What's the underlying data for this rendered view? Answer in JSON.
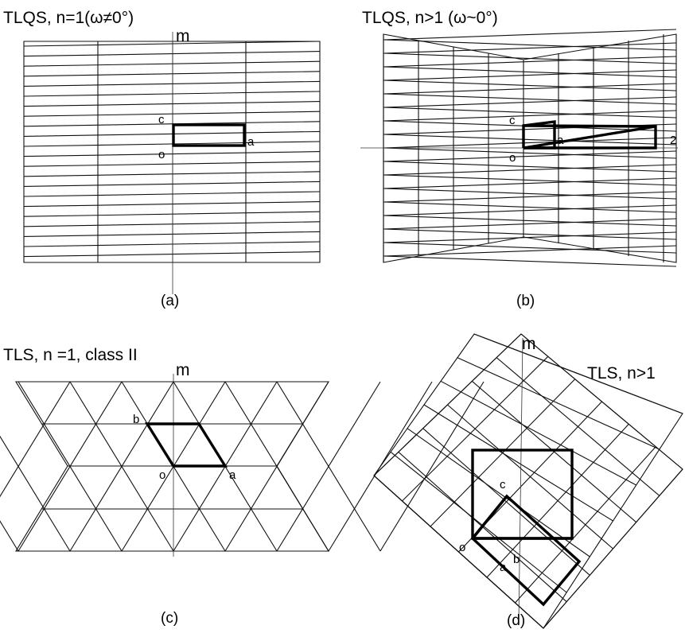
{
  "panels": {
    "a": {
      "title": "TLQS,  n=1(ω≠0°)",
      "mirror_label": "m",
      "point_labels": {
        "origin": "o",
        "a": "a",
        "c": "c"
      },
      "caption": "(a)"
    },
    "b": {
      "title": "TLQS,  n>1 (ω~0°)",
      "point_labels": {
        "origin": "o",
        "a": "a",
        "c": "c"
      },
      "axis_label": "2",
      "caption": "(b)"
    },
    "c": {
      "title": "TLS,  n =1, class II",
      "mirror_label": "m",
      "point_labels": {
        "origin": "o",
        "a": "a",
        "b": "b"
      },
      "caption": "(c)"
    },
    "d": {
      "title": "TLS,  n>1",
      "mirror_label": "m",
      "point_labels": {
        "origin": "o",
        "a": "a",
        "b": "b",
        "c": "c"
      },
      "caption": "(d)"
    }
  }
}
